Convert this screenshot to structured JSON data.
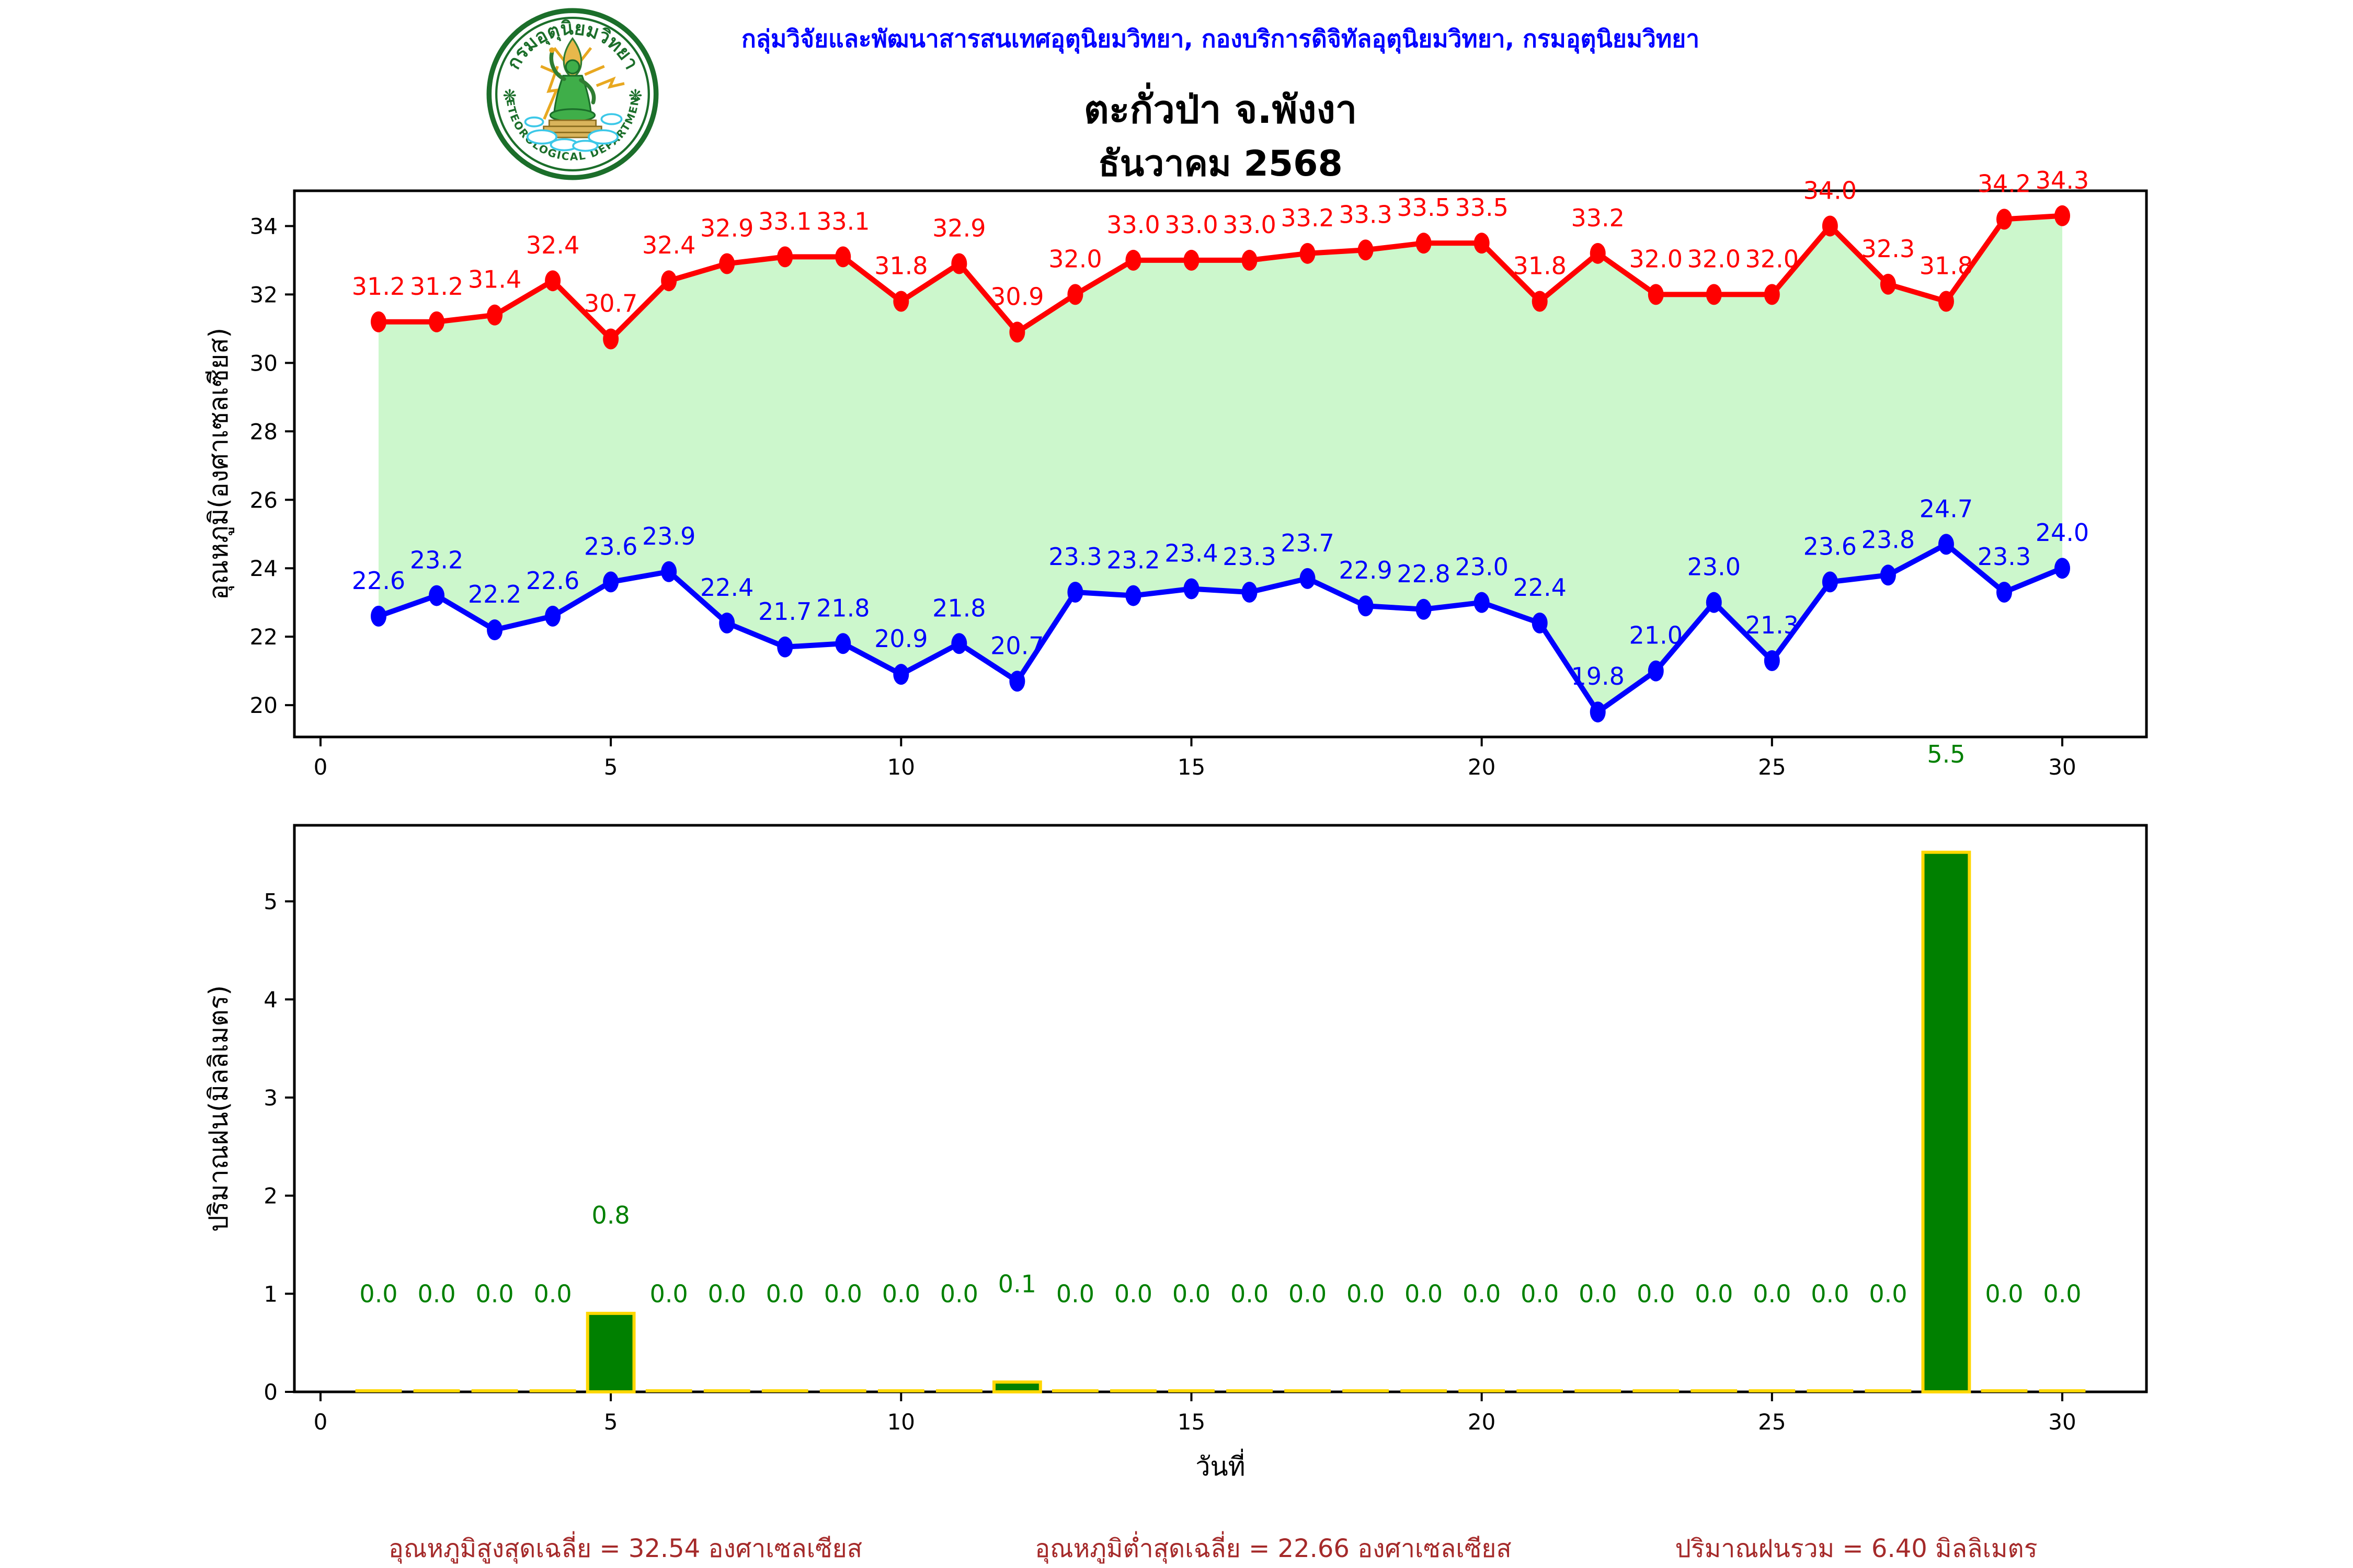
{
  "header": {
    "org_line": "กลุ่มวิจัยและพัฒนาสารสนเทศอุตุนิยมวิทยา, กองบริการดิจิทัลอุตุนิยมวิทยา, กรมอุตุนิยมวิทยา",
    "title": "ตะกั่วป่า จ.พังงา",
    "subtitle": "ธันวาคม 2568",
    "logo": {
      "top_text": "กรมอุตุนิยมวิทยา",
      "bottom_text": "METEOROLOGICAL DEPARTMENT"
    }
  },
  "chart_data": [
    {
      "type": "line",
      "x": [
        1,
        2,
        3,
        4,
        5,
        6,
        7,
        8,
        9,
        10,
        11,
        12,
        13,
        14,
        15,
        16,
        17,
        18,
        19,
        20,
        21,
        22,
        23,
        24,
        25,
        26,
        27,
        28,
        29,
        30
      ],
      "series": [
        {
          "name": "max_temp",
          "color": "#ff0000",
          "values": [
            31.2,
            31.2,
            31.4,
            32.4,
            30.7,
            32.4,
            32.9,
            33.1,
            33.1,
            31.8,
            32.9,
            30.9,
            32.0,
            33.0,
            33.0,
            33.0,
            33.2,
            33.3,
            33.5,
            33.5,
            31.8,
            33.2,
            32.0,
            32.0,
            32.0,
            34.0,
            32.3,
            31.8,
            34.2,
            34.3
          ]
        },
        {
          "name": "min_temp",
          "color": "#0000ff",
          "values": [
            22.6,
            23.2,
            22.2,
            22.6,
            23.6,
            23.9,
            22.4,
            21.7,
            21.8,
            20.9,
            21.8,
            20.7,
            23.3,
            23.2,
            23.4,
            23.3,
            23.7,
            22.9,
            22.8,
            23.0,
            22.4,
            19.8,
            21.0,
            23.0,
            21.3,
            23.6,
            23.8,
            24.7,
            23.3,
            24.0
          ]
        }
      ],
      "fill_between_color": "#ccf7cc",
      "ylabel": "อุณหภูมิ(องศาเซลเซียส)",
      "yticks": [
        20,
        22,
        24,
        26,
        28,
        30,
        32,
        34
      ],
      "xticks": [
        0,
        5,
        10,
        15,
        20,
        25,
        30
      ],
      "ylim": [
        19.07,
        35.03
      ],
      "xlim": [
        -0.45,
        31.45
      ],
      "grid": false,
      "legend": "none"
    },
    {
      "type": "bar",
      "x": [
        1,
        2,
        3,
        4,
        5,
        6,
        7,
        8,
        9,
        10,
        11,
        12,
        13,
        14,
        15,
        16,
        17,
        18,
        19,
        20,
        21,
        22,
        23,
        24,
        25,
        26,
        27,
        28,
        29,
        30
      ],
      "values": [
        0.0,
        0.0,
        0.0,
        0.0,
        0.8,
        0.0,
        0.0,
        0.0,
        0.0,
        0.0,
        0.0,
        0.1,
        0.0,
        0.0,
        0.0,
        0.0,
        0.0,
        0.0,
        0.0,
        0.0,
        0.0,
        0.0,
        0.0,
        0.0,
        0.0,
        0.0,
        0.0,
        5.5,
        0.0,
        0.0
      ],
      "bar_color": "#008000",
      "bar_edge_color": "#ffd700",
      "label_color": "#008000",
      "ylabel": "ปริมาณฝน(มิลลิเมตร)",
      "xlabel": "วันที่",
      "yticks": [
        0,
        1,
        2,
        3,
        4,
        5
      ],
      "xticks": [
        0,
        5,
        10,
        15,
        20,
        25,
        30
      ],
      "ylim": [
        0,
        5.775
      ],
      "xlim": [
        -0.45,
        31.45
      ],
      "grid": false,
      "legend": "none"
    }
  ],
  "footer": {
    "stats": [
      "อุณหภูมิสูงสุดเฉลี่ย = 32.54 องศาเซลเซียส",
      "อุณหภูมิต่ำสุดเฉลี่ย = 22.66 องศาเซลเซียส",
      "ปริมาณฝนรวม = 6.40 มิลลิเมตร"
    ],
    "color": "#a52a2a"
  },
  "colors": {
    "header_text": "#0000ff",
    "logo_green": "#1b6e2a",
    "logo_gold": "#e8a820",
    "logo_cloud": "#3cc8e8",
    "spine": "#000000"
  }
}
